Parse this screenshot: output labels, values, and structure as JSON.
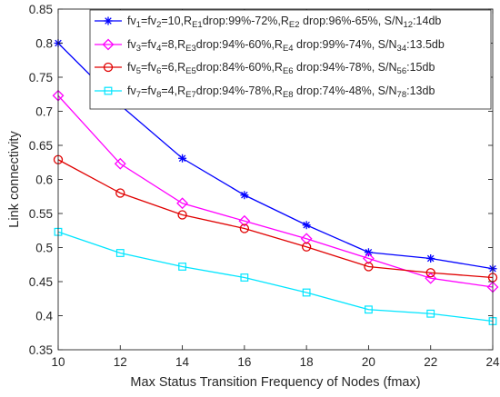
{
  "chart_data": {
    "type": "line",
    "title": "",
    "xlabel": "Max Status Transition Frequency of Nodes (fmax)",
    "ylabel": "Link connectivity",
    "xlim": [
      10,
      24
    ],
    "ylim": [
      0.35,
      0.85
    ],
    "x": [
      10,
      12,
      14,
      16,
      18,
      20,
      22,
      24
    ],
    "xticks": [
      "10",
      "12",
      "14",
      "16",
      "18",
      "20",
      "22",
      "24"
    ],
    "yticks": [
      "0.35",
      "0.4",
      "0.45",
      "0.5",
      "0.55",
      "0.6",
      "0.65",
      "0.7",
      "0.75",
      "0.8",
      "0.85"
    ],
    "grid": false,
    "legend_position": "top-right",
    "series": [
      {
        "name": "fv1=fv2=10,RE1drop:99%-72%,RE2 drop:96%-65%, S/N12:14db",
        "legend_parts": [
          {
            "t": "fv"
          },
          {
            "t": "1",
            "sub": true
          },
          {
            "t": "=fv"
          },
          {
            "t": "2",
            "sub": true
          },
          {
            "t": "=10,R"
          },
          {
            "t": "E1",
            "sub": true
          },
          {
            "t": "drop:99%-72%,R"
          },
          {
            "t": "E2",
            "sub": true
          },
          {
            "t": " drop:96%-65%, S/N"
          },
          {
            "t": "12",
            "sub": true
          },
          {
            "t": ":14db"
          }
        ],
        "color": "#0000ff",
        "marker": "star",
        "values": [
          0.8,
          0.709,
          0.631,
          0.577,
          0.533,
          0.493,
          0.484,
          0.469
        ]
      },
      {
        "name": "fv3=fv4=8,RE3drop:94%-60%,RE4 drop:99%-74%, S/N34:13.5db",
        "legend_parts": [
          {
            "t": "fv"
          },
          {
            "t": "3",
            "sub": true
          },
          {
            "t": "=fv"
          },
          {
            "t": "4",
            "sub": true
          },
          {
            "t": "=8,R"
          },
          {
            "t": "E3",
            "sub": true
          },
          {
            "t": "drop:94%-60%,R"
          },
          {
            "t": "E4",
            "sub": true
          },
          {
            "t": " drop:99%-74%, S/N"
          },
          {
            "t": "34",
            "sub": true
          },
          {
            "t": ":13.5db"
          }
        ],
        "color": "#ff00ff",
        "marker": "diamond",
        "values": [
          0.723,
          0.623,
          0.565,
          0.539,
          0.513,
          0.484,
          0.455,
          0.442
        ]
      },
      {
        "name": "fv5=fv6=6,RE5drop:84%-60%,RE6 drop:94%-78%, S/N56:15db",
        "legend_parts": [
          {
            "t": "fv"
          },
          {
            "t": "5",
            "sub": true
          },
          {
            "t": "=fv"
          },
          {
            "t": "6",
            "sub": true
          },
          {
            "t": "=6,R"
          },
          {
            "t": "E5",
            "sub": true
          },
          {
            "t": "drop:84%-60%,R"
          },
          {
            "t": "E6",
            "sub": true
          },
          {
            "t": " drop:94%-78%, S/N"
          },
          {
            "t": "56",
            "sub": true
          },
          {
            "t": ":15db"
          }
        ],
        "color": "#e00000",
        "marker": "circle",
        "values": [
          0.629,
          0.58,
          0.548,
          0.528,
          0.501,
          0.472,
          0.463,
          0.456
        ]
      },
      {
        "name": "fv7=fv8=4,RE7drop:94%-78%,RE8 drop:74%-48%, S/N78:13db",
        "legend_parts": [
          {
            "t": "fv"
          },
          {
            "t": "7",
            "sub": true
          },
          {
            "t": "=fv"
          },
          {
            "t": "8",
            "sub": true
          },
          {
            "t": "=4,R"
          },
          {
            "t": "E7",
            "sub": true
          },
          {
            "t": "drop:94%-78%,R"
          },
          {
            "t": "E8",
            "sub": true
          },
          {
            "t": " drop:74%-48%, S/N"
          },
          {
            "t": "78",
            "sub": true
          },
          {
            "t": ":13db"
          }
        ],
        "color": "#00e5ff",
        "marker": "square",
        "values": [
          0.523,
          0.492,
          0.472,
          0.456,
          0.434,
          0.409,
          0.403,
          0.392
        ]
      }
    ]
  }
}
